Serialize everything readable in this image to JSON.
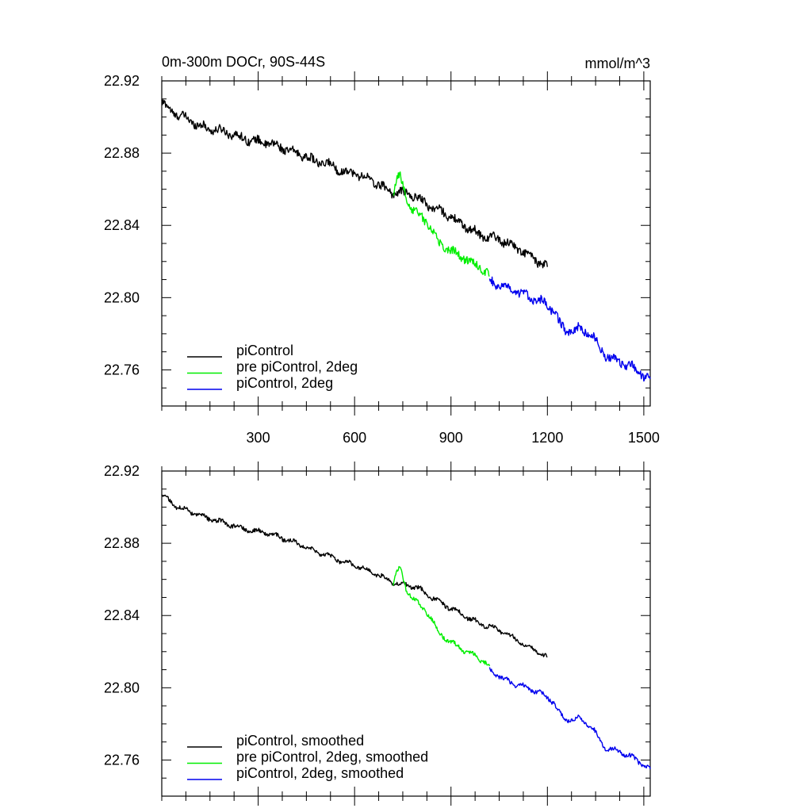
{
  "figure": {
    "title_left": "0m-300m DOCr, 90S-44S",
    "title_right": "mmol/m^3"
  },
  "chart_data": [
    {
      "type": "line",
      "title": "0m-300m DOCr, 90S-44S",
      "units": "mmol/m^3",
      "xlabel": "",
      "ylabel": "",
      "xlim": [
        0,
        1520
      ],
      "ylim": [
        22.74,
        22.92
      ],
      "x_ticks": [
        300,
        600,
        900,
        1200,
        1500
      ],
      "x_tick_labels": [
        "300",
        "600",
        "900",
        "1200",
        "1500"
      ],
      "y_ticks": [
        22.76,
        22.8,
        22.84,
        22.88,
        22.92
      ],
      "y_tick_labels": [
        "22.76",
        "22.80",
        "22.84",
        "22.88",
        "22.92"
      ],
      "legend_position": "bottom-left",
      "grid": false,
      "series": [
        {
          "name": "piControl",
          "color": "#000000",
          "x": [
            0,
            40,
            80,
            120,
            160,
            200,
            240,
            280,
            320,
            360,
            400,
            440,
            480,
            520,
            560,
            600,
            640,
            680,
            720,
            760,
            800,
            840,
            880,
            920,
            960,
            1000,
            1040,
            1080,
            1120,
            1160,
            1200
          ],
          "y": [
            22.908,
            22.902,
            22.899,
            22.895,
            22.893,
            22.892,
            22.889,
            22.887,
            22.886,
            22.884,
            22.881,
            22.879,
            22.875,
            22.874,
            22.87,
            22.869,
            22.866,
            22.862,
            22.858,
            22.858,
            22.855,
            22.85,
            22.847,
            22.842,
            22.838,
            22.834,
            22.833,
            22.83,
            22.826,
            22.821,
            22.817
          ]
        },
        {
          "name": "pre piControl, 2deg",
          "color": "#00ee00",
          "x": [
            720,
            730,
            740,
            750,
            760,
            780,
            800,
            820,
            840,
            860,
            880,
            900,
            920,
            940,
            960,
            980,
            1000,
            1020
          ],
          "y": [
            22.858,
            22.864,
            22.868,
            22.862,
            22.855,
            22.849,
            22.846,
            22.843,
            22.838,
            22.831,
            22.828,
            22.826,
            22.824,
            22.822,
            22.82,
            22.818,
            22.816,
            22.812
          ]
        },
        {
          "name": "piControl, 2deg",
          "color": "#0000ee",
          "x": [
            1020,
            1060,
            1100,
            1140,
            1180,
            1220,
            1240,
            1260,
            1300,
            1340,
            1360,
            1380,
            1420,
            1460,
            1500,
            1520
          ],
          "y": [
            22.81,
            22.806,
            22.803,
            22.801,
            22.798,
            22.793,
            22.785,
            22.781,
            22.783,
            22.779,
            22.773,
            22.768,
            22.765,
            22.762,
            22.757,
            22.755
          ]
        }
      ]
    },
    {
      "type": "line",
      "title": "",
      "xlabel": "",
      "ylabel": "",
      "xlim": [
        0,
        1520
      ],
      "ylim": [
        22.74,
        22.92
      ],
      "x_ticks": [
        300,
        600,
        900,
        1200,
        1500
      ],
      "y_ticks": [
        22.76,
        22.8,
        22.84,
        22.88,
        22.92
      ],
      "y_tick_labels": [
        "22.76",
        "22.80",
        "22.84",
        "22.88",
        "22.92"
      ],
      "legend_position": "bottom-left",
      "grid": false,
      "series": [
        {
          "name": "piControl, smoothed",
          "color": "#000000",
          "x": [
            0,
            40,
            80,
            120,
            160,
            200,
            240,
            280,
            320,
            360,
            400,
            440,
            480,
            520,
            560,
            600,
            640,
            680,
            720,
            760,
            800,
            840,
            880,
            920,
            960,
            1000,
            1040,
            1080,
            1120,
            1160,
            1200
          ],
          "y": [
            22.907,
            22.901,
            22.898,
            22.895,
            22.893,
            22.891,
            22.889,
            22.887,
            22.886,
            22.884,
            22.881,
            22.879,
            22.875,
            22.873,
            22.87,
            22.868,
            22.865,
            22.862,
            22.858,
            22.857,
            22.855,
            22.85,
            22.846,
            22.842,
            22.838,
            22.835,
            22.833,
            22.829,
            22.825,
            22.821,
            22.817
          ]
        },
        {
          "name": "pre piControl, 2deg, smoothed",
          "color": "#00ee00",
          "x": [
            720,
            730,
            740,
            750,
            760,
            780,
            800,
            820,
            840,
            860,
            880,
            900,
            920,
            940,
            960,
            980,
            1000,
            1020
          ],
          "y": [
            22.858,
            22.863,
            22.867,
            22.861,
            22.855,
            22.85,
            22.846,
            22.843,
            22.838,
            22.831,
            22.828,
            22.825,
            22.823,
            22.821,
            22.819,
            22.817,
            22.815,
            22.812
          ]
        },
        {
          "name": "piControl, 2deg, smoothed",
          "color": "#0000ee",
          "x": [
            1020,
            1060,
            1100,
            1140,
            1180,
            1220,
            1240,
            1260,
            1300,
            1340,
            1360,
            1380,
            1420,
            1460,
            1500,
            1520
          ],
          "y": [
            22.81,
            22.805,
            22.802,
            22.8,
            22.797,
            22.792,
            22.785,
            22.782,
            22.783,
            22.778,
            22.772,
            22.767,
            22.765,
            22.762,
            22.757,
            22.755
          ]
        }
      ]
    }
  ]
}
